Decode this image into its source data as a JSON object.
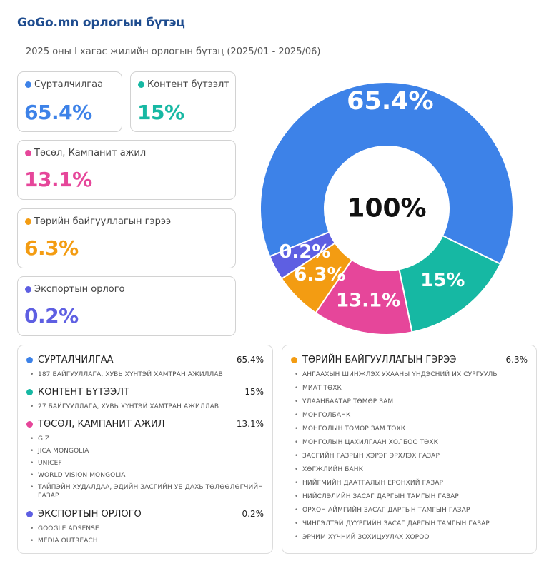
{
  "header": {
    "title": "GoGo.mn орлогын бүтэц",
    "subtitle": "2025 оны I хагас жилийн орлогын бүтэц (2025/01 - 2025/06)"
  },
  "cards": [
    {
      "label": "Сурталчилгаа",
      "value": "65.4%",
      "color": "#3d82e8"
    },
    {
      "label": "Контент бүтээлт",
      "value": "15%",
      "color": "#16b8a3"
    },
    {
      "label": "Төсөл, Кампанит ажил",
      "value": "13.1%",
      "color": "#e6469a"
    },
    {
      "label": "Төрийн байгууллагын гэрээ",
      "value": "6.3%",
      "color": "#f39c12"
    },
    {
      "label": "Экспортын орлого",
      "value": "0.2%",
      "color": "#5e5fe2"
    }
  ],
  "chart_data": {
    "type": "pie",
    "title": "",
    "center_label": "100%",
    "categories": [
      "Сурталчилгаа",
      "Контент бүтээлт",
      "Төсөл, Кампанит ажил",
      "Төрийн байгууллагын гэрээ",
      "Экспортын орлого"
    ],
    "values": [
      65.4,
      15,
      13.1,
      6.3,
      0.2
    ],
    "labels": [
      "65.4%",
      "15%",
      "13.1%",
      "6.3%",
      "0.2%"
    ],
    "colors": [
      "#3d82e8",
      "#16b8a3",
      "#e6469a",
      "#f39c12",
      "#5e5fe2"
    ]
  },
  "panels": {
    "left": [
      {
        "name": "СУРТАЛЧИЛГАА",
        "pct": "65.4%",
        "color": "#3d82e8",
        "items": [
          "187 БАЙГУУЛЛАГА, ХУВЬ ХҮНТЭЙ ХАМТРАН АЖИЛЛАВ"
        ]
      },
      {
        "name": "КОНТЕНТ БҮТЭЭЛТ",
        "pct": "15%",
        "color": "#16b8a3",
        "items": [
          "27 БАЙГУУЛЛАГА, ХУВЬ ХҮНТЭЙ ХАМТРАН АЖИЛЛАВ"
        ]
      },
      {
        "name": "ТӨСӨЛ, КАМПАНИТ АЖИЛ",
        "pct": "13.1%",
        "color": "#e6469a",
        "items": [
          "GIZ",
          "JICA MONGOLIA",
          "UNICEF",
          "WORLD VISION MONGOLIA",
          "ТАЙПЭЙН ХУДАЛДАА, ЭДИЙН ЗАСГИЙН УБ ДАХЬ ТӨЛӨӨЛӨГЧИЙН ГАЗАР"
        ]
      },
      {
        "name": "ЭКСПОРТЫН ОРЛОГО",
        "pct": "0.2%",
        "color": "#5e5fe2",
        "items": [
          "GOOGLE ADSENSE",
          "MEDIA OUTREACH"
        ]
      }
    ],
    "right": [
      {
        "name": "ТӨРИЙН БАЙГУУЛЛАГЫН ГЭРЭЭ",
        "pct": "6.3%",
        "color": "#f39c12",
        "items": [
          "АНГААХЫН ШИНЖЛЭХ УХААНЫ ҮНДЭСНИЙ ИХ СУРГУУЛЬ",
          "МИАТ ТӨХК",
          "УЛААНБААТАР ТӨМӨР ЗАМ",
          "МОНГОЛБАНК",
          "МОНГОЛЫН ТӨМӨР ЗАМ ТӨХК",
          "МОНГОЛЫН ЦАХИЛГААН ХОЛБОО ТӨХК",
          "ЗАСГИЙН ГАЗРЫН ХЭРЭГ ЭРХЛЭХ ГАЗАР",
          "ХӨГЖЛИЙН БАНК",
          "НИЙГМИЙН ДААТГАЛЫН ЕРӨНХИЙ ГАЗАР",
          "НИЙСЛЭЛИЙН ЗАСАГ ДАРГЫН ТАМГЫН ГАЗАР",
          "ОРХОН АЙМГИЙН ЗАСАГ ДАРГЫН ТАМГЫН ГАЗАР",
          "ЧИНГЭЛТЭЙ ДҮҮРГИЙН ЗАСАГ ДАРГЫН ТАМГЫН ГАЗАР",
          "ЭРЧИМ ХҮЧНИЙ ЗОХИЦУУЛАХ ХОРОО"
        ]
      }
    ]
  }
}
